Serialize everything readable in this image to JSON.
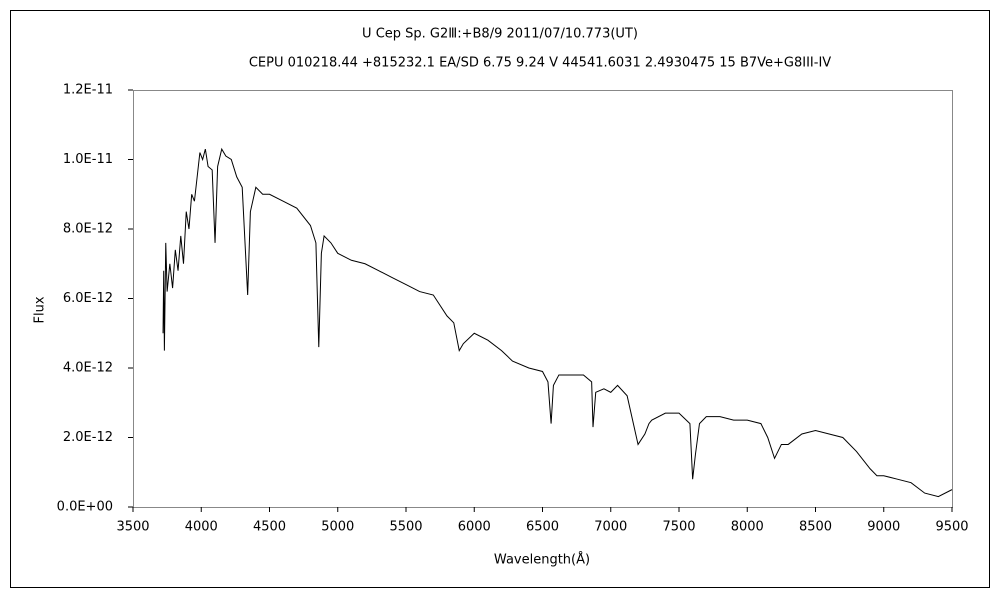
{
  "chart_data": {
    "type": "line",
    "title": "U Cep    Sp. G2Ⅲ:+B8/9    2011/07/10.773(UT)",
    "subtitle": "CEPU 010218.44 +815232.1  EA/SD 6.75 9.24 V 44541.6031 2.4930475 15 B7Ve+G8III-IV",
    "x_label": "Wavelength(Å)",
    "y_label": "Flux",
    "x": [
      3720,
      3725,
      3730,
      3740,
      3750,
      3770,
      3790,
      3810,
      3830,
      3850,
      3870,
      3890,
      3910,
      3930,
      3950,
      3970,
      3990,
      4010,
      4030,
      4050,
      4080,
      4101,
      4120,
      4150,
      4180,
      4220,
      4260,
      4300,
      4340,
      4360,
      4400,
      4450,
      4500,
      4600,
      4700,
      4800,
      4840,
      4861,
      4880,
      4900,
      4950,
      5000,
      5100,
      5200,
      5300,
      5400,
      5500,
      5600,
      5700,
      5800,
      5850,
      5890,
      5920,
      6000,
      6100,
      6200,
      6280,
      6400,
      6500,
      6540,
      6563,
      6580,
      6620,
      6800,
      6860,
      6870,
      6890,
      6950,
      7000,
      7050,
      7120,
      7200,
      7250,
      7280,
      7300,
      7400,
      7500,
      7580,
      7600,
      7620,
      7650,
      7700,
      7800,
      7900,
      8000,
      8100,
      8150,
      8200,
      8250,
      8300,
      8400,
      8500,
      8600,
      8700,
      8800,
      8900,
      8950,
      9000,
      9100,
      9200,
      9300,
      9400,
      9500
    ],
    "series": [
      {
        "name": "Flux",
        "color": "#000000",
        "values": [
          5e-12,
          6.8e-12,
          4.5e-12,
          7.6e-12,
          6.2e-12,
          7e-12,
          6.3e-12,
          7.4e-12,
          6.8e-12,
          7.8e-12,
          7e-12,
          8.5e-12,
          8e-12,
          9e-12,
          8.8e-12,
          9.5e-12,
          1.02e-11,
          1e-11,
          1.03e-11,
          9.8e-12,
          9.7e-12,
          7.6e-12,
          9.8e-12,
          1.03e-11,
          1.01e-11,
          1e-11,
          9.5e-12,
          9.2e-12,
          6.1e-12,
          8.5e-12,
          9.2e-12,
          9e-12,
          9e-12,
          8.8e-12,
          8.6e-12,
          8.1e-12,
          7.6e-12,
          4.6e-12,
          7.3e-12,
          7.8e-12,
          7.6e-12,
          7.3e-12,
          7.1e-12,
          7e-12,
          6.8e-12,
          6.6e-12,
          6.4e-12,
          6.2e-12,
          6.1e-12,
          5.5e-12,
          5.3e-12,
          4.5e-12,
          4.7e-12,
          5e-12,
          4.8e-12,
          4.5e-12,
          4.2e-12,
          4e-12,
          3.9e-12,
          3.6e-12,
          2.4e-12,
          3.5e-12,
          3.8e-12,
          3.8e-12,
          3.6e-12,
          2.3e-12,
          3.3e-12,
          3.4e-12,
          3.3e-12,
          3.5e-12,
          3.2e-12,
          1.8e-12,
          2.1e-12,
          2.4e-12,
          2.5e-12,
          2.7e-12,
          2.7e-12,
          2.4e-12,
          8e-13,
          1.5e-12,
          2.4e-12,
          2.6e-12,
          2.6e-12,
          2.5e-12,
          2.5e-12,
          2.4e-12,
          2e-12,
          1.4e-12,
          1.8e-12,
          1.8e-12,
          2.1e-12,
          2.2e-12,
          2.1e-12,
          2e-12,
          1.6e-12,
          1.1e-12,
          9e-13,
          9e-13,
          8e-13,
          7e-13,
          4e-13,
          3e-13,
          5e-13
        ]
      }
    ],
    "xlim": [
      3500,
      9500
    ],
    "xticks": [
      3500,
      4000,
      4500,
      5000,
      5500,
      6000,
      6500,
      7000,
      7500,
      8000,
      8500,
      9000,
      9500
    ],
    "ylim": [
      0,
      1.2e-11
    ],
    "yticks": [
      {
        "value": 0,
        "label": "0.0E+00"
      },
      {
        "value": 2e-12,
        "label": "2.0E-12"
      },
      {
        "value": 4e-12,
        "label": "4.0E-12"
      },
      {
        "value": 6e-12,
        "label": "6.0E-12"
      },
      {
        "value": 8e-12,
        "label": "8.0E-12"
      },
      {
        "value": 1e-11,
        "label": "1.0E-11"
      },
      {
        "value": 1.2e-11,
        "label": "1.2E-11"
      }
    ],
    "grid": false
  }
}
